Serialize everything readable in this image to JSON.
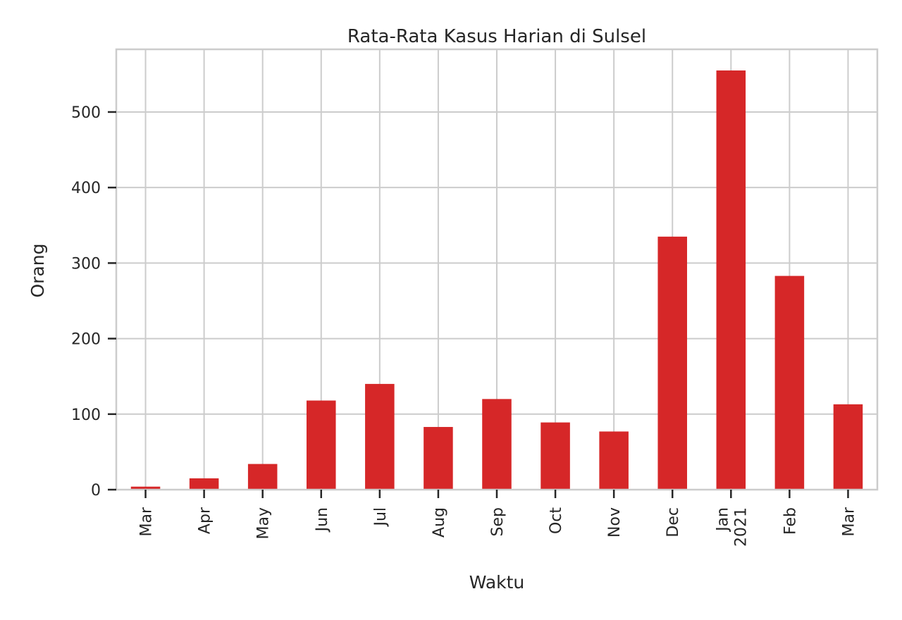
{
  "chart_data": {
    "type": "bar",
    "title": "Rata-Rata Kasus Harian di Sulsel",
    "xlabel": "Waktu",
    "ylabel": "Orang",
    "categories": [
      "Mar",
      "Apr",
      "May",
      "Jun",
      "Jul",
      "Aug",
      "Sep",
      "Oct",
      "Nov",
      "Dec",
      "Jan\n2021",
      "Feb",
      "Mar"
    ],
    "values": [
      4,
      15,
      34,
      118,
      140,
      83,
      120,
      89,
      77,
      335,
      555,
      283,
      113
    ],
    "ylim": [
      0,
      583
    ],
    "yticks": [
      0,
      100,
      200,
      300,
      400,
      500
    ],
    "bar_color": "#d62728",
    "grid": true,
    "legend": "none"
  }
}
